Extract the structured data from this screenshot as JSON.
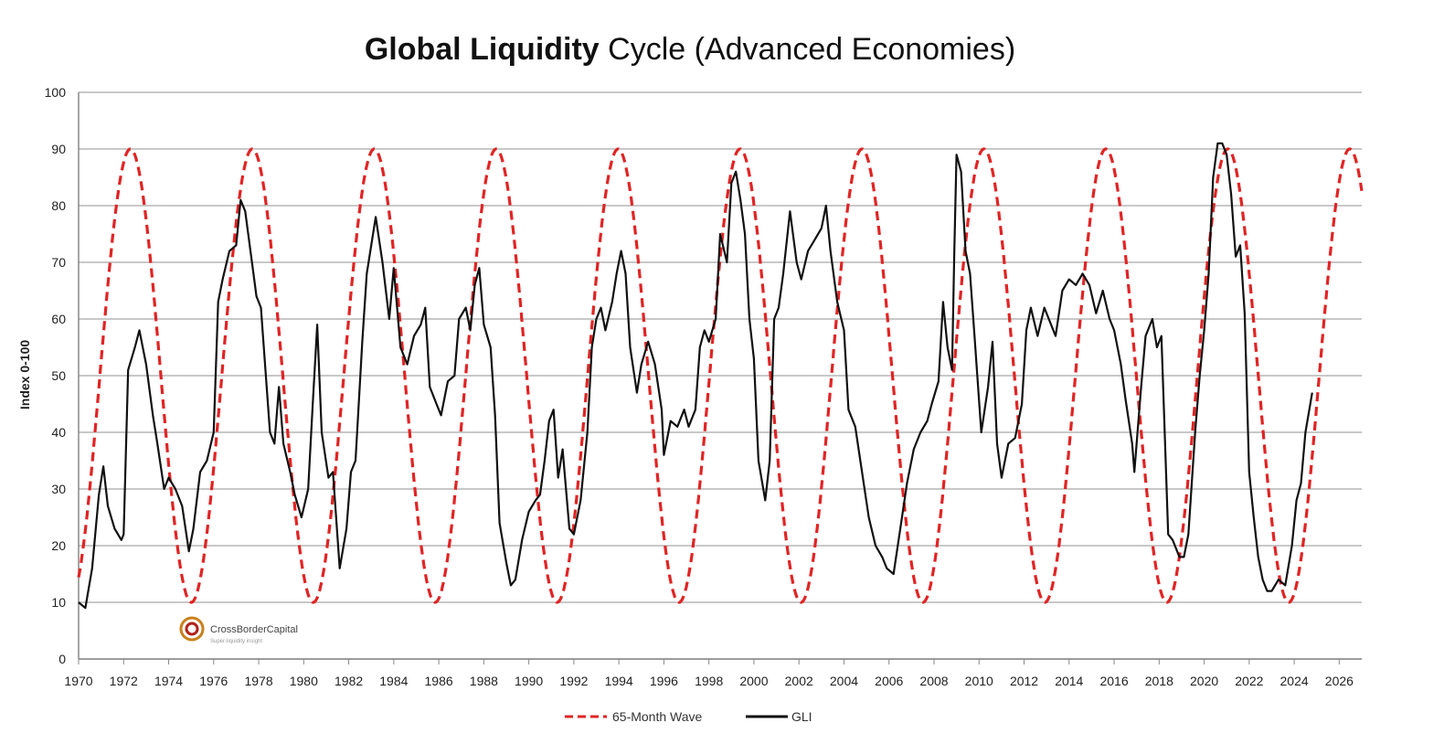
{
  "chart_data": {
    "type": "line",
    "title_bold": "Global Liquidity",
    "title_rest": " Cycle (Advanced Economies)",
    "ylabel": "Index 0-100",
    "xlabel": "",
    "xlim": [
      1970,
      2027
    ],
    "ylim": [
      0,
      100
    ],
    "x_ticks": [
      "1970",
      "1972",
      "1974",
      "1976",
      "1978",
      "1980",
      "1982",
      "1984",
      "1986",
      "1988",
      "1990",
      "1992",
      "1994",
      "1996",
      "1998",
      "2000",
      "2002",
      "2004",
      "2006",
      "2008",
      "2010",
      "2012",
      "2014",
      "2016",
      "2018",
      "2020",
      "2022",
      "2024",
      "2026"
    ],
    "y_ticks": [
      "0",
      "10",
      "20",
      "30",
      "40",
      "50",
      "60",
      "70",
      "80",
      "90",
      "100"
    ],
    "grid": "horizontal",
    "legend_position": "bottom-center",
    "series": [
      {
        "name": "65-Month Wave",
        "style": "dashed",
        "color": "#e02424",
        "wave": {
          "period_years": 5.4167,
          "min": 10,
          "max": 90,
          "first_peak_x": 1972.3
        },
        "x_end": 2027
      },
      {
        "name": "GLI",
        "style": "solid",
        "color": "#111111",
        "points": [
          [
            1970.0,
            10
          ],
          [
            1970.3,
            9
          ],
          [
            1970.6,
            16
          ],
          [
            1970.9,
            29
          ],
          [
            1971.1,
            34
          ],
          [
            1971.3,
            27
          ],
          [
            1971.6,
            23
          ],
          [
            1971.9,
            21
          ],
          [
            1972.0,
            22
          ],
          [
            1972.2,
            51
          ],
          [
            1972.5,
            55
          ],
          [
            1972.7,
            58
          ],
          [
            1973.0,
            52
          ],
          [
            1973.3,
            43
          ],
          [
            1973.5,
            38
          ],
          [
            1973.8,
            30
          ],
          [
            1974.0,
            32
          ],
          [
            1974.3,
            30
          ],
          [
            1974.6,
            27
          ],
          [
            1974.9,
            19
          ],
          [
            1975.1,
            23
          ],
          [
            1975.4,
            33
          ],
          [
            1975.7,
            35
          ],
          [
            1976.0,
            40
          ],
          [
            1976.2,
            63
          ],
          [
            1976.4,
            67
          ],
          [
            1976.7,
            72
          ],
          [
            1977.0,
            73
          ],
          [
            1977.2,
            81
          ],
          [
            1977.4,
            79
          ],
          [
            1977.7,
            70
          ],
          [
            1977.9,
            64
          ],
          [
            1978.1,
            62
          ],
          [
            1978.5,
            40
          ],
          [
            1978.7,
            38
          ],
          [
            1978.9,
            48
          ],
          [
            1979.1,
            38
          ],
          [
            1979.4,
            33
          ],
          [
            1979.6,
            29
          ],
          [
            1979.9,
            25
          ],
          [
            1980.2,
            30
          ],
          [
            1980.4,
            45
          ],
          [
            1980.6,
            59
          ],
          [
            1980.8,
            40
          ],
          [
            1981.1,
            32
          ],
          [
            1981.3,
            33
          ],
          [
            1981.6,
            16
          ],
          [
            1981.9,
            23
          ],
          [
            1982.1,
            33
          ],
          [
            1982.3,
            35
          ],
          [
            1982.6,
            56
          ],
          [
            1982.8,
            68
          ],
          [
            1983.0,
            73
          ],
          [
            1983.2,
            78
          ],
          [
            1983.5,
            70
          ],
          [
            1983.8,
            60
          ],
          [
            1984.0,
            69
          ],
          [
            1984.3,
            55
          ],
          [
            1984.6,
            52
          ],
          [
            1984.9,
            57
          ],
          [
            1985.2,
            59
          ],
          [
            1985.4,
            62
          ],
          [
            1985.6,
            48
          ],
          [
            1985.9,
            45
          ],
          [
            1986.1,
            43
          ],
          [
            1986.4,
            49
          ],
          [
            1986.7,
            50
          ],
          [
            1986.9,
            60
          ],
          [
            1987.2,
            62
          ],
          [
            1987.4,
            58
          ],
          [
            1987.6,
            66
          ],
          [
            1987.8,
            69
          ],
          [
            1988.0,
            59
          ],
          [
            1988.3,
            55
          ],
          [
            1988.5,
            43
          ],
          [
            1988.7,
            24
          ],
          [
            1989.0,
            17
          ],
          [
            1989.2,
            13
          ],
          [
            1989.4,
            14
          ],
          [
            1989.7,
            21
          ],
          [
            1990.0,
            26
          ],
          [
            1990.3,
            28
          ],
          [
            1990.5,
            29
          ],
          [
            1990.7,
            35
          ],
          [
            1990.9,
            42
          ],
          [
            1991.1,
            44
          ],
          [
            1991.3,
            32
          ],
          [
            1991.5,
            37
          ],
          [
            1991.8,
            23
          ],
          [
            1992.0,
            22
          ],
          [
            1992.3,
            28
          ],
          [
            1992.6,
            40
          ],
          [
            1992.8,
            55
          ],
          [
            1993.0,
            60
          ],
          [
            1993.2,
            62
          ],
          [
            1993.4,
            58
          ],
          [
            1993.7,
            63
          ],
          [
            1993.9,
            68
          ],
          [
            1994.1,
            72
          ],
          [
            1994.3,
            68
          ],
          [
            1994.5,
            55
          ],
          [
            1994.8,
            47
          ],
          [
            1995.0,
            52
          ],
          [
            1995.3,
            56
          ],
          [
            1995.6,
            52
          ],
          [
            1995.9,
            44
          ],
          [
            1996.0,
            36
          ],
          [
            1996.3,
            42
          ],
          [
            1996.6,
            41
          ],
          [
            1996.9,
            44
          ],
          [
            1997.1,
            41
          ],
          [
            1997.4,
            44
          ],
          [
            1997.6,
            55
          ],
          [
            1997.8,
            58
          ],
          [
            1998.0,
            56
          ],
          [
            1998.3,
            60
          ],
          [
            1998.5,
            75
          ],
          [
            1998.8,
            70
          ],
          [
            1999.0,
            84
          ],
          [
            1999.2,
            86
          ],
          [
            1999.4,
            81
          ],
          [
            1999.6,
            75
          ],
          [
            1999.8,
            60
          ],
          [
            2000.0,
            53
          ],
          [
            2000.2,
            35
          ],
          [
            2000.5,
            28
          ],
          [
            2000.7,
            35
          ],
          [
            2000.9,
            60
          ],
          [
            2001.1,
            62
          ],
          [
            2001.3,
            68
          ],
          [
            2001.6,
            79
          ],
          [
            2001.9,
            70
          ],
          [
            2002.1,
            67
          ],
          [
            2002.4,
            72
          ],
          [
            2002.7,
            74
          ],
          [
            2003.0,
            76
          ],
          [
            2003.2,
            80
          ],
          [
            2003.4,
            72
          ],
          [
            2003.7,
            63
          ],
          [
            2004.0,
            58
          ],
          [
            2004.2,
            44
          ],
          [
            2004.5,
            41
          ],
          [
            2004.8,
            33
          ],
          [
            2005.1,
            25
          ],
          [
            2005.4,
            20
          ],
          [
            2005.7,
            18
          ],
          [
            2005.9,
            16
          ],
          [
            2006.2,
            15
          ],
          [
            2006.5,
            23
          ],
          [
            2006.8,
            31
          ],
          [
            2007.1,
            37
          ],
          [
            2007.4,
            40
          ],
          [
            2007.7,
            42
          ],
          [
            2007.9,
            45
          ],
          [
            2008.2,
            49
          ],
          [
            2008.4,
            63
          ],
          [
            2008.6,
            55
          ],
          [
            2008.8,
            51
          ],
          [
            2008.9,
            72
          ],
          [
            2009.0,
            89
          ],
          [
            2009.2,
            86
          ],
          [
            2009.4,
            72
          ],
          [
            2009.6,
            68
          ],
          [
            2009.8,
            57
          ],
          [
            2010.1,
            40
          ],
          [
            2010.4,
            48
          ],
          [
            2010.6,
            56
          ],
          [
            2010.8,
            38
          ],
          [
            2011.0,
            32
          ],
          [
            2011.3,
            38
          ],
          [
            2011.6,
            39
          ],
          [
            2011.9,
            45
          ],
          [
            2012.1,
            58
          ],
          [
            2012.3,
            62
          ],
          [
            2012.6,
            57
          ],
          [
            2012.9,
            62
          ],
          [
            2013.1,
            60
          ],
          [
            2013.4,
            57
          ],
          [
            2013.7,
            65
          ],
          [
            2014.0,
            67
          ],
          [
            2014.3,
            66
          ],
          [
            2014.6,
            68
          ],
          [
            2014.9,
            66
          ],
          [
            2015.2,
            61
          ],
          [
            2015.5,
            65
          ],
          [
            2015.8,
            60
          ],
          [
            2016.0,
            58
          ],
          [
            2016.3,
            52
          ],
          [
            2016.5,
            46
          ],
          [
            2016.8,
            38
          ],
          [
            2016.9,
            33
          ],
          [
            2017.2,
            48
          ],
          [
            2017.4,
            57
          ],
          [
            2017.7,
            60
          ],
          [
            2017.9,
            55
          ],
          [
            2018.1,
            57
          ],
          [
            2018.4,
            22
          ],
          [
            2018.6,
            21
          ],
          [
            2018.9,
            18
          ],
          [
            2019.1,
            18
          ],
          [
            2019.3,
            22
          ],
          [
            2019.6,
            40
          ],
          [
            2019.8,
            50
          ],
          [
            2020.0,
            58
          ],
          [
            2020.2,
            68
          ],
          [
            2020.4,
            85
          ],
          [
            2020.6,
            91
          ],
          [
            2020.8,
            91
          ],
          [
            2021.0,
            89
          ],
          [
            2021.2,
            82
          ],
          [
            2021.4,
            71
          ],
          [
            2021.6,
            73
          ],
          [
            2021.8,
            61
          ],
          [
            2022.0,
            33
          ],
          [
            2022.2,
            25
          ],
          [
            2022.4,
            18
          ],
          [
            2022.6,
            14
          ],
          [
            2022.8,
            12
          ],
          [
            2023.0,
            12
          ],
          [
            2023.3,
            14
          ],
          [
            2023.6,
            13
          ],
          [
            2023.9,
            20
          ],
          [
            2024.1,
            28
          ],
          [
            2024.3,
            31
          ],
          [
            2024.5,
            40
          ],
          [
            2024.8,
            47
          ]
        ]
      }
    ],
    "logo_text": "CrossBorderCapital",
    "logo_subtext": "Super-liquidity insight"
  }
}
